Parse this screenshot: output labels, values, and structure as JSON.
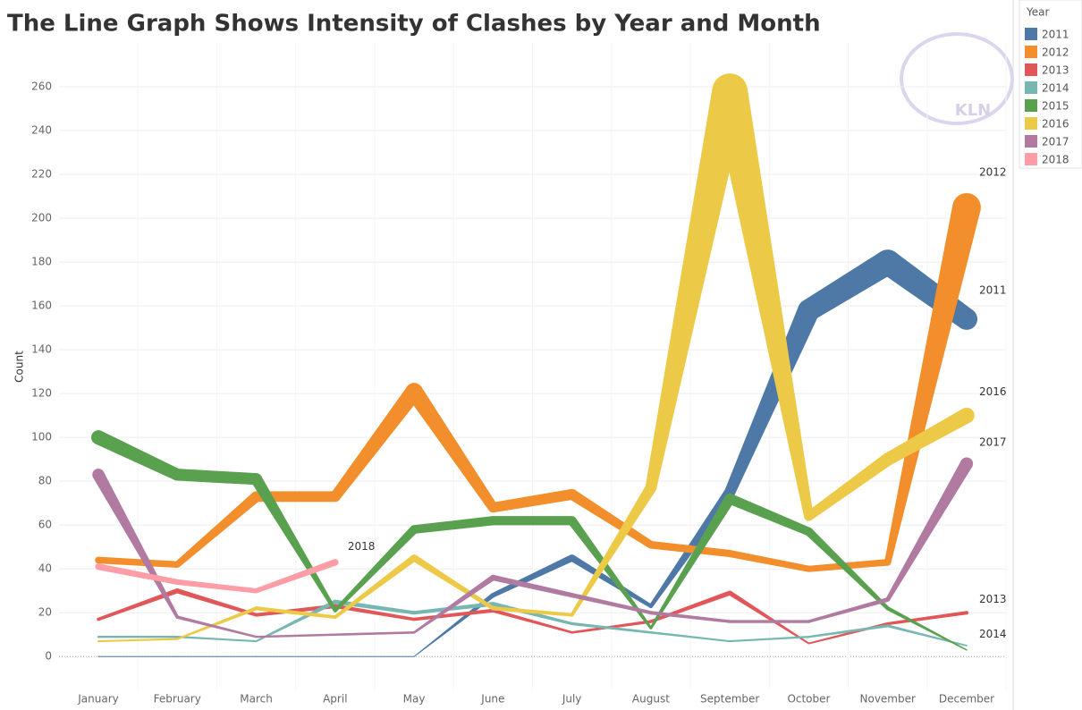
{
  "chart_data": {
    "type": "line",
    "title": "The Line Graph Shows Intensity of Clashes by Year and Month",
    "y_label": "Count",
    "legend_title": "Year",
    "legend_position": "right",
    "watermark": "KLN",
    "categories": [
      "January",
      "February",
      "March",
      "April",
      "May",
      "June",
      "July",
      "August",
      "September",
      "October",
      "November",
      "December"
    ],
    "ylim": [
      -15,
      280
    ],
    "yticks": [
      0,
      20,
      40,
      60,
      80,
      100,
      120,
      140,
      160,
      180,
      200,
      220,
      240,
      260
    ],
    "grid": true,
    "line_width_by_value": true,
    "series": [
      {
        "name": "2011",
        "color": "#4e79a7",
        "end_label": true,
        "values": [
          0,
          0,
          0,
          0,
          0,
          28,
          45,
          23,
          75,
          158,
          180,
          154
        ]
      },
      {
        "name": "2012",
        "color": "#f28e2b",
        "end_label": true,
        "values": [
          44,
          42,
          73,
          73,
          121,
          68,
          74,
          51,
          47,
          40,
          43,
          205
        ]
      },
      {
        "name": "2013",
        "color": "#e15759",
        "end_label": true,
        "values": [
          17,
          30,
          19,
          23,
          17,
          21,
          11,
          16,
          29,
          6,
          15,
          20
        ]
      },
      {
        "name": "2014",
        "color": "#76b7b2",
        "end_label": true,
        "values": [
          9,
          9,
          7,
          25,
          20,
          24,
          15,
          11,
          7,
          9,
          14,
          5
        ]
      },
      {
        "name": "2015",
        "color": "#59a14f",
        "end_label": false,
        "values": [
          100,
          83,
          81,
          21,
          58,
          62,
          62,
          13,
          72,
          57,
          22,
          3
        ]
      },
      {
        "name": "2016",
        "color": "#edc948",
        "end_label": true,
        "values": [
          7,
          8,
          22,
          18,
          45,
          22,
          19,
          77,
          258,
          64,
          90,
          110
        ]
      },
      {
        "name": "2017",
        "color": "#b07aa1",
        "end_label": true,
        "values": [
          83,
          18,
          9,
          10,
          11,
          36,
          28,
          20,
          16,
          16,
          26,
          88
        ]
      },
      {
        "name": "2018",
        "color": "#ff9da7",
        "end_label": true,
        "values": [
          41,
          34,
          30,
          43,
          null,
          null,
          null,
          null,
          null,
          null,
          null,
          null
        ]
      }
    ]
  }
}
